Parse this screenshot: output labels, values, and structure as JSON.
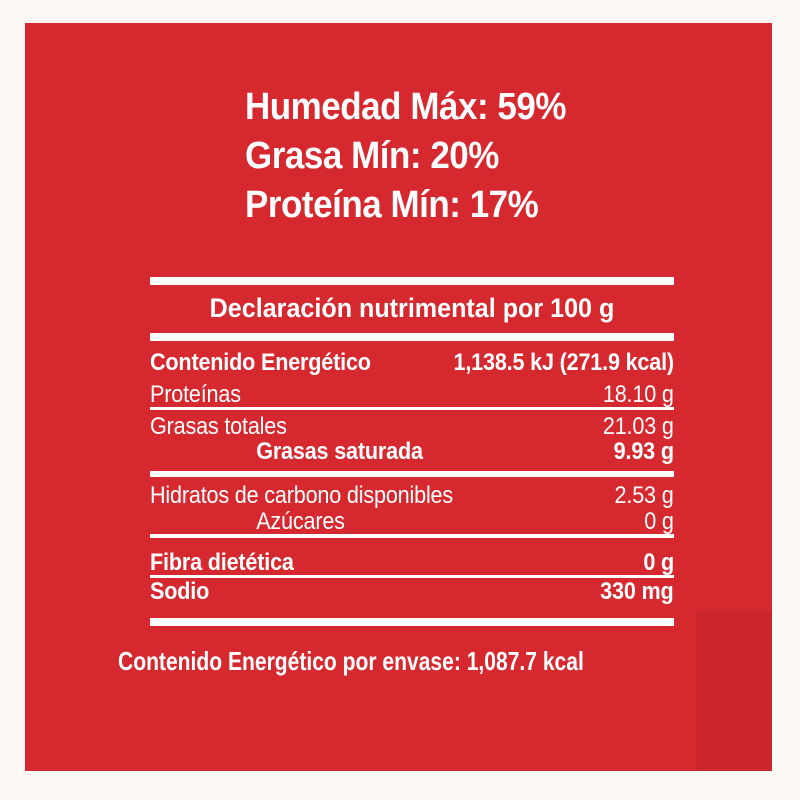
{
  "colors": {
    "panel_red": "#d5282f",
    "page_background": "#fdf8f6",
    "text_white": "#ffffff"
  },
  "specs": {
    "items": [
      {
        "text": "Humedad Máx: 59%"
      },
      {
        "text": "Grasa Mín: 20%"
      },
      {
        "text": "Proteína Mín: 17%"
      }
    ]
  },
  "nutrition": {
    "title": "Declaración nutrimental por 100 g",
    "rows": [
      {
        "label": "Contenido Energético",
        "value": "1,138.5 kJ (271.9 kcal)"
      },
      {
        "label": "Proteínas",
        "value": "18.10 g"
      },
      {
        "label": "Grasas totales",
        "value": "21.03 g"
      },
      {
        "label": "Grasas saturada",
        "value": "9.93 g"
      },
      {
        "label": "Hidratos de carbono disponibles",
        "value": "2.53 g"
      },
      {
        "label": "Azúcares",
        "value": "0 g"
      },
      {
        "label": "Fibra dietética",
        "value": "0 g"
      },
      {
        "label": "Sodio",
        "value": "330 mg"
      }
    ]
  },
  "footer": {
    "text": "Contenido Energético por envase: 1,087.7 kcal"
  }
}
